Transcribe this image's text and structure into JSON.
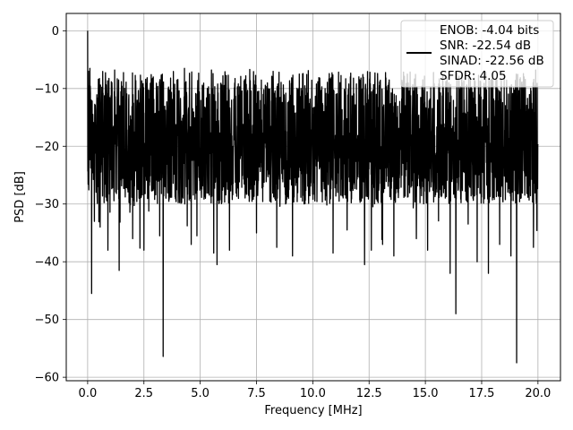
{
  "chart_data": {
    "type": "line",
    "title": "",
    "xlabel": "Frequency [MHz]",
    "ylabel": "PSD [dB]",
    "xlim": [
      -0.95,
      21.0
    ],
    "ylim": [
      -60.6,
      3.0
    ],
    "x_ticks": [
      "0.0",
      "2.5",
      "5.0",
      "7.5",
      "10.0",
      "12.5",
      "15.0",
      "17.5",
      "20.0"
    ],
    "x_tick_values": [
      0,
      2.5,
      5,
      7.5,
      10,
      12.5,
      15,
      17.5,
      20
    ],
    "y_ticks": [
      "0",
      "−10",
      "−20",
      "−30",
      "−40",
      "−50",
      "−60"
    ],
    "y_tick_values": [
      0,
      -10,
      -20,
      -30,
      -40,
      -50,
      -60
    ],
    "grid": true,
    "legend_position": "upper right",
    "legend": {
      "lines": [
        "ENOB: -4.04 bits",
        "SNR: -22.54 dB",
        "SINAD: -22.56 dB",
        "SFDR: 4.05"
      ]
    },
    "series": [
      {
        "color": "#000000",
        "description": "noise-like power spectral density, 0 to 20 MHz",
        "x_start": 0.0,
        "x_end": 20.0,
        "peak": [
          0.0,
          0.0
        ],
        "noise_band_upper": -7,
        "noise_band_lower": -30,
        "notable_dips": [
          [
            0.18,
            -45.5
          ],
          [
            0.3,
            -33
          ],
          [
            0.55,
            -34
          ],
          [
            0.9,
            -38
          ],
          [
            1.4,
            -41.5
          ],
          [
            2.0,
            -36
          ],
          [
            2.5,
            -38
          ],
          [
            3.2,
            -35.5
          ],
          [
            3.35,
            -56.4
          ],
          [
            4.6,
            -37
          ],
          [
            4.85,
            -35.5
          ],
          [
            5.6,
            -38.5
          ],
          [
            5.75,
            -40.5
          ],
          [
            6.3,
            -38
          ],
          [
            7.5,
            -35
          ],
          [
            8.4,
            -37.5
          ],
          [
            9.1,
            -39
          ],
          [
            10.9,
            -38.5
          ],
          [
            12.3,
            -40.5
          ],
          [
            12.6,
            -38
          ],
          [
            13.1,
            -37
          ],
          [
            13.6,
            -39
          ],
          [
            14.6,
            -36
          ],
          [
            15.1,
            -38
          ],
          [
            16.1,
            -42
          ],
          [
            16.35,
            -49
          ],
          [
            17.3,
            -40
          ],
          [
            17.8,
            -42
          ],
          [
            18.3,
            -37
          ],
          [
            18.8,
            -39
          ],
          [
            19.05,
            -57.5
          ],
          [
            19.8,
            -37.5
          ]
        ],
        "notable_peaks": [
          [
            0.04,
            -7
          ],
          [
            0.1,
            -6.5
          ],
          [
            1.2,
            -6.8
          ],
          [
            3.2,
            -7.5
          ],
          [
            4.3,
            -6.5
          ],
          [
            5.5,
            -6.8
          ],
          [
            7.2,
            -6.7
          ],
          [
            9.8,
            -6.9
          ],
          [
            12.3,
            -7.0
          ],
          [
            14.2,
            -7.5
          ],
          [
            17.0,
            -8.3
          ],
          [
            18.5,
            -7.5
          ],
          [
            19.9,
            -6.8
          ]
        ]
      }
    ]
  }
}
